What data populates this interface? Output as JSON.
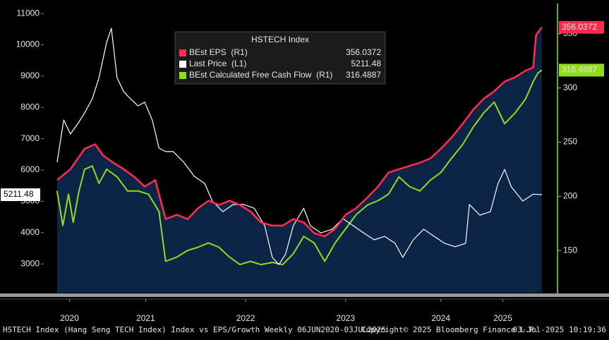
{
  "chart_data": {
    "type": "line",
    "legend_title": "HSTECH Index",
    "footer": [
      "HSTECH Index (Hang Seng TECH Index) Index vs EPS/Growth  Weekly 06JUN2020-03JUL2025",
      "Copyright© 2025 Bloomberg Finance L.P.",
      "03-Jul-2025 10:19:36"
    ],
    "xlim": [
      2020.33,
      2025.71
    ],
    "xticks": [
      {
        "value": 2020.6,
        "label": "2020"
      },
      {
        "value": 2021.4,
        "label": "2021"
      },
      {
        "value": 2022.45,
        "label": "2022"
      },
      {
        "value": 2023.5,
        "label": "2023"
      },
      {
        "value": 2024.5,
        "label": "2024"
      },
      {
        "value": 2025.15,
        "label": "2025"
      }
    ],
    "ylim": [
      2080,
      11320
    ],
    "yticks": [
      3000,
      4000,
      5000,
      6000,
      7000,
      8000,
      9000,
      10000,
      11000
    ],
    "y2lim": [
      111,
      378
    ],
    "y2ticks": [
      150,
      200,
      250,
      300,
      350
    ],
    "grid": false,
    "series": [
      {
        "name": "BEst EPS  (R1)",
        "color": "#ff2b4e",
        "axis": "y2",
        "area_color": "#0c2446",
        "x": [
          2020.47,
          2020.61,
          2020.76,
          2020.87,
          2020.95,
          2021.06,
          2021.17,
          2021.28,
          2021.39,
          2021.5,
          2021.61,
          2021.73,
          2021.84,
          2021.95,
          2022.06,
          2022.17,
          2022.28,
          2022.39,
          2022.5,
          2022.61,
          2022.73,
          2022.84,
          2022.95,
          2023.06,
          2023.17,
          2023.28,
          2023.39,
          2023.5,
          2023.61,
          2023.73,
          2023.84,
          2023.95,
          2024.06,
          2024.17,
          2024.28,
          2024.39,
          2024.5,
          2024.61,
          2024.73,
          2024.84,
          2024.95,
          2025.06,
          2025.17,
          2025.28,
          2025.39,
          2025.47,
          2025.5,
          2025.56
        ],
        "values": [
          215,
          225,
          244,
          248,
          238,
          231,
          225,
          218,
          209,
          215,
          179,
          183,
          179,
          189,
          196,
          192,
          196,
          192,
          186,
          176,
          173,
          173,
          179,
          176,
          166,
          163,
          170,
          183,
          189,
          199,
          209,
          222,
          225,
          228,
          231,
          235,
          244,
          254,
          267,
          280,
          290,
          297,
          306,
          310,
          316,
          319,
          349,
          356.0372
        ]
      },
      {
        "name": "Last Price  (L1)",
        "color": "#ffffff",
        "x": [
          2020.47,
          2020.54,
          2020.61,
          2020.69,
          2020.76,
          2020.84,
          2020.91,
          2020.99,
          2021.04,
          2021.1,
          2021.17,
          2021.24,
          2021.32,
          2021.39,
          2021.47,
          2021.54,
          2021.61,
          2021.69,
          2021.8,
          2021.91,
          2022.02,
          2022.1,
          2022.21,
          2022.32,
          2022.43,
          2022.54,
          2022.65,
          2022.73,
          2022.8,
          2022.87,
          2022.95,
          2023.06,
          2023.13,
          2023.24,
          2023.36,
          2023.47,
          2023.58,
          2023.69,
          2023.8,
          2023.91,
          2024.02,
          2024.1,
          2024.21,
          2024.32,
          2024.43,
          2024.54,
          2024.65,
          2024.76,
          2024.8,
          2024.91,
          2025.02,
          2025.1,
          2025.17,
          2025.24,
          2025.36,
          2025.47,
          2025.56
        ],
        "values": [
          6250,
          7600,
          7150,
          7490,
          7830,
          8280,
          8950,
          10080,
          10530,
          8950,
          8500,
          8280,
          8050,
          8170,
          7600,
          6700,
          6590,
          6590,
          6250,
          5800,
          5570,
          5010,
          4670,
          4900,
          4900,
          4780,
          4220,
          3210,
          2980,
          3320,
          4220,
          4780,
          4220,
          3990,
          4110,
          4450,
          4220,
          3990,
          3770,
          3880,
          3660,
          3210,
          3770,
          4110,
          3880,
          3660,
          3550,
          3660,
          4900,
          4560,
          4670,
          5570,
          6020,
          5460,
          5010,
          5230,
          5211.48
        ]
      },
      {
        "name": "BEst Calculated Free Cash Flow  (R1)",
        "color": "#8fdc1a",
        "axis": "y2",
        "x": [
          2020.47,
          2020.53,
          2020.59,
          2020.64,
          2020.7,
          2020.76,
          2020.84,
          2020.91,
          2020.99,
          2021.1,
          2021.21,
          2021.32,
          2021.43,
          2021.54,
          2021.61,
          2021.73,
          2021.84,
          2021.95,
          2022.06,
          2022.17,
          2022.28,
          2022.39,
          2022.5,
          2022.61,
          2022.73,
          2022.84,
          2022.95,
          2023.06,
          2023.17,
          2023.28,
          2023.39,
          2023.5,
          2023.61,
          2023.73,
          2023.84,
          2023.95,
          2024.06,
          2024.17,
          2024.28,
          2024.39,
          2024.5,
          2024.61,
          2024.73,
          2024.84,
          2024.95,
          2025.06,
          2025.17,
          2025.28,
          2025.39,
          2025.47,
          2025.52,
          2025.56
        ],
        "values": [
          205,
          173,
          202,
          176,
          205,
          225,
          228,
          212,
          225,
          218,
          205,
          205,
          202,
          186,
          140,
          144,
          150,
          153,
          157,
          153,
          144,
          137,
          140,
          137,
          139,
          137,
          147,
          163,
          157,
          140,
          157,
          170,
          183,
          192,
          196,
          202,
          218,
          209,
          205,
          215,
          222,
          235,
          248,
          264,
          277,
          287,
          267,
          277,
          290,
          306,
          314,
          316.4887
        ]
      }
    ]
  }
}
